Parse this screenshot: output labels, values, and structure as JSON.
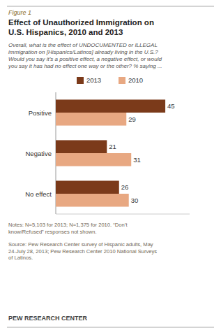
{
  "chart_data": {
    "type": "bar",
    "orientation": "horizontal",
    "title": "Effect of Unauthorized Immigration on\nU.S. Hispanics, 2010 and 2013",
    "subtitle": "Overall, what is the effect of UNDOCUMENTED or ILLEGAL\nimmigration on [Hispanics/Latinos] already living in the U.S.?\nWould you say it’s a positive effect, a negative effect, or would\nyou say it has had no effect one way or the other? % saying ...",
    "categories": [
      "Positive",
      "Negative",
      "No effect"
    ],
    "series": [
      {
        "name": "2013",
        "color": "#7B3A1A",
        "values": [
          45,
          21,
          26
        ]
      },
      {
        "name": "2010",
        "color": "#E8A882",
        "values": [
          29,
          31,
          30
        ]
      }
    ],
    "xlim": [
      0,
      55
    ],
    "data_labels": true,
    "tick_labels": "y",
    "legend": "top",
    "annotations": [
      "Figure 1",
      "Notes: N=5,103 for 2013; N=1,375 for 2010. “Don’t\nknow/Refused” responses not shown.",
      "Source: Pew Research Center survey of Hispanic adults, May\n24-July 28, 2013; Pew Research Center 2010 National Surveys\nof Latinos.",
      "PEW RESEARCH CENTER"
    ]
  }
}
